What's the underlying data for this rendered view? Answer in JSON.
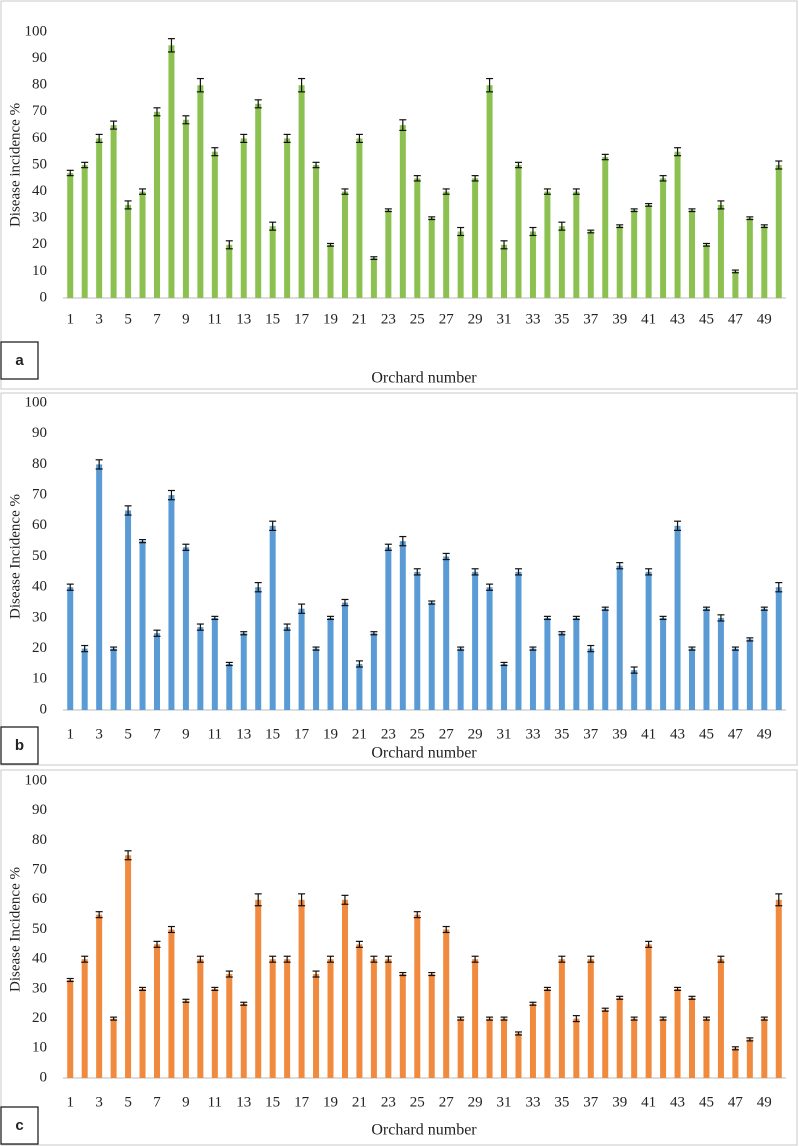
{
  "chart_data": [
    {
      "type": "bar",
      "panel_label": "a",
      "y_label": "Disease incidence %",
      "x_label": "Orchard number",
      "color": "#8cc152",
      "categories": [
        "1",
        null,
        "3",
        null,
        "5",
        null,
        "7",
        null,
        "9",
        null,
        "11",
        null,
        "13",
        null,
        "15",
        null,
        "17",
        null,
        "19",
        null,
        "21",
        null,
        "23",
        null,
        "25",
        null,
        "27",
        null,
        "29",
        null,
        "31",
        null,
        "33",
        null,
        "35",
        null,
        "37",
        null,
        "39",
        null,
        "41",
        null,
        "43",
        null,
        "45",
        null,
        "47",
        null,
        "49",
        null
      ],
      "values": [
        47,
        50,
        60,
        65,
        35,
        40,
        70,
        95,
        67,
        80,
        55,
        20,
        60,
        73,
        27,
        60,
        80,
        50,
        20,
        40,
        60,
        15,
        33,
        65,
        45,
        30,
        40,
        25,
        45,
        80,
        20,
        50,
        25,
        40,
        27,
        40,
        25,
        53,
        27,
        33,
        35,
        45,
        55,
        33,
        20,
        35,
        10,
        30,
        27,
        50
      ],
      "errors": [
        1,
        1,
        1.5,
        1.5,
        1.5,
        1,
        1.5,
        2.5,
        1.5,
        2.5,
        1.5,
        1.5,
        1.5,
        1.5,
        1.5,
        1.5,
        2.5,
        1,
        0.5,
        1,
        1.5,
        0.5,
        0.5,
        2,
        1,
        0.5,
        1,
        1.5,
        1,
        2.5,
        1.5,
        1,
        1.5,
        1,
        1.5,
        1,
        0.5,
        1,
        0.5,
        0.5,
        0.5,
        1,
        1.5,
        0.5,
        0.5,
        1.5,
        0.5,
        0.5,
        0.5,
        1.5
      ],
      "ylim": [
        0,
        100
      ],
      "yticks": [
        0,
        10,
        20,
        30,
        40,
        50,
        60,
        70,
        80,
        90,
        100
      ]
    },
    {
      "type": "bar",
      "panel_label": "b",
      "y_label": "Disease Incidence %",
      "x_label": "Orchard number",
      "color": "#5b9bd5",
      "categories": [
        "1",
        null,
        "3",
        null,
        "5",
        null,
        "7",
        null,
        "9",
        null,
        "11",
        null,
        "13",
        null,
        "15",
        null,
        "17",
        null,
        "19",
        null,
        "21",
        null,
        "23",
        null,
        "25",
        null,
        "27",
        null,
        "29",
        null,
        "31",
        null,
        "33",
        null,
        "35",
        null,
        "37",
        null,
        "39",
        null,
        "41",
        null,
        "43",
        null,
        "45",
        null,
        "47",
        null,
        "49",
        null
      ],
      "values": [
        40,
        20,
        80,
        20,
        65,
        55,
        25,
        70,
        53,
        27,
        30,
        15,
        25,
        40,
        60,
        27,
        33,
        20,
        30,
        35,
        15,
        25,
        53,
        55,
        45,
        35,
        50,
        20,
        45,
        40,
        15,
        45,
        20,
        30,
        25,
        30,
        20,
        33,
        47,
        13,
        45,
        30,
        60,
        20,
        33,
        30,
        20,
        23,
        33,
        40
      ],
      "errors": [
        1,
        1,
        1.5,
        0.5,
        1.5,
        0.5,
        1,
        1.5,
        1,
        1,
        0.5,
        0.5,
        0.5,
        1.5,
        1.5,
        1,
        1.5,
        0.5,
        0.5,
        1,
        1,
        0.5,
        1,
        1.5,
        1,
        0.5,
        1,
        0.5,
        1,
        1,
        0.5,
        1,
        0.5,
        0.5,
        0.5,
        0.5,
        1,
        0.5,
        1,
        1,
        1,
        0.5,
        1.5,
        0.5,
        0.5,
        1,
        0.5,
        0.5,
        0.5,
        1.5
      ],
      "ylim": [
        0,
        100
      ],
      "yticks": [
        0,
        10,
        20,
        30,
        40,
        50,
        60,
        70,
        80,
        90,
        100
      ]
    },
    {
      "type": "bar",
      "panel_label": "c",
      "y_label": "Disease Incidence %",
      "x_label": "Orchard number",
      "color": "#f08a3e",
      "categories": [
        "1",
        null,
        "3",
        null,
        "5",
        null,
        "7",
        null,
        "9",
        null,
        "11",
        null,
        "13",
        null,
        "15",
        null,
        "17",
        null,
        "19",
        null,
        "21",
        null,
        "23",
        null,
        "25",
        null,
        "27",
        null,
        "29",
        null,
        "31",
        null,
        "33",
        null,
        "35",
        null,
        "37",
        null,
        "39",
        null,
        "41",
        null,
        "43",
        null,
        "45",
        null,
        "47",
        null,
        "49",
        null
      ],
      "values": [
        33,
        40,
        55,
        20,
        75,
        30,
        45,
        50,
        26,
        40,
        30,
        35,
        25,
        60,
        40,
        40,
        60,
        35,
        40,
        60,
        45,
        40,
        40,
        35,
        55,
        35,
        50,
        20,
        40,
        20,
        20,
        15,
        25,
        30,
        40,
        20,
        40,
        23,
        27,
        20,
        45,
        20,
        30,
        27,
        20,
        40,
        10,
        13,
        20,
        60
      ],
      "errors": [
        0.5,
        1,
        1,
        0.5,
        1.5,
        0.5,
        1,
        1,
        0.5,
        1,
        0.5,
        1,
        0.5,
        2,
        1,
        1,
        2,
        1,
        1,
        1.5,
        1,
        1,
        1,
        0.5,
        1,
        0.5,
        1,
        0.5,
        1,
        0.5,
        0.5,
        0.5,
        0.5,
        0.5,
        1,
        1,
        1,
        0.5,
        0.5,
        0.5,
        1,
        0.5,
        0.5,
        0.5,
        0.5,
        1,
        0.5,
        0.5,
        0.5,
        2
      ],
      "ylim": [
        0,
        100
      ],
      "yticks": [
        0,
        10,
        20,
        30,
        40,
        50,
        60,
        70,
        80,
        90,
        100
      ]
    }
  ]
}
